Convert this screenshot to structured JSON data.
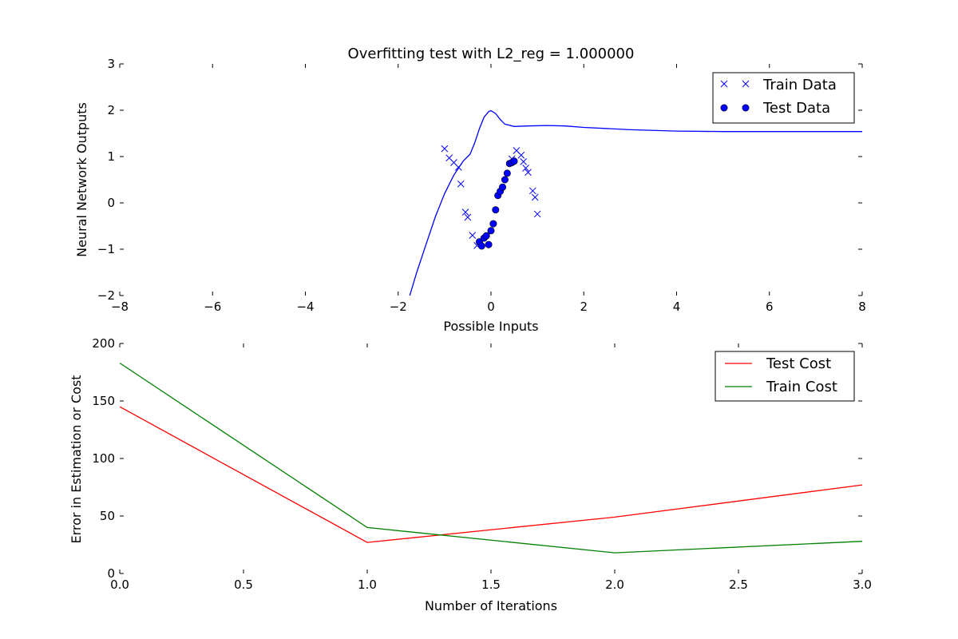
{
  "chart_data": [
    {
      "type": "line",
      "title": "Overfitting test with L2_reg = 1.000000",
      "xlabel": "Possible Inputs",
      "ylabel": "Neural Network Outputs",
      "xlim": [
        -8,
        8
      ],
      "ylim": [
        -2,
        3
      ],
      "xticks": [
        -8,
        -6,
        -4,
        -2,
        0,
        2,
        4,
        6,
        8
      ],
      "yticks": [
        -2,
        -1,
        0,
        1,
        2,
        3
      ],
      "xtick_labels": [
        "−8",
        "−6",
        "−4",
        "−2",
        "0",
        "2",
        "4",
        "6",
        "8"
      ],
      "ytick_labels": [
        "−2",
        "−1",
        "0",
        "1",
        "2",
        "3"
      ],
      "grid": false,
      "legend_placement": "top-right",
      "legend": [
        "Train Data",
        "Test Data"
      ],
      "model_curve": {
        "color": "#0000ff",
        "x": [
          -1.75,
          -1.6,
          -1.4,
          -1.2,
          -1.0,
          -0.8,
          -0.6,
          -0.45,
          -0.35,
          -0.25,
          -0.15,
          -0.05,
          0.0,
          0.1,
          0.2,
          0.3,
          0.5,
          0.8,
          1.2,
          1.6,
          2.0,
          3.0,
          4.0,
          5.0,
          6.0,
          7.0,
          8.0
        ],
        "y": [
          -2.0,
          -1.5,
          -0.9,
          -0.3,
          0.2,
          0.6,
          0.9,
          1.05,
          1.3,
          1.6,
          1.85,
          1.97,
          1.99,
          1.93,
          1.8,
          1.7,
          1.65,
          1.66,
          1.67,
          1.66,
          1.63,
          1.58,
          1.55,
          1.54,
          1.54,
          1.54,
          1.54
        ]
      },
      "series": [
        {
          "name": "Train Data",
          "marker": "x",
          "color": "#0000ff",
          "x": [
            -1.0,
            -0.9,
            -0.8,
            -0.7,
            -0.65,
            -0.55,
            -0.5,
            -0.4,
            -0.3,
            0.45,
            0.55,
            0.65,
            0.7,
            0.75,
            0.8,
            0.9,
            0.95,
            1.0
          ],
          "y": [
            1.17,
            0.97,
            0.87,
            0.77,
            0.41,
            -0.2,
            -0.31,
            -0.7,
            -0.92,
            0.95,
            1.13,
            1.03,
            0.89,
            0.75,
            0.66,
            0.26,
            0.12,
            -0.24
          ]
        },
        {
          "name": "Test Data",
          "marker": "o",
          "color": "#0000ff",
          "x": [
            -0.25,
            -0.2,
            -0.15,
            -0.1,
            -0.05,
            0.0,
            0.05,
            0.1,
            0.15,
            0.2,
            0.25,
            0.3,
            0.35,
            0.4,
            0.45,
            0.5
          ],
          "y": [
            -0.84,
            -0.93,
            -0.76,
            -0.71,
            -0.9,
            -0.6,
            -0.45,
            -0.15,
            0.16,
            0.25,
            0.34,
            0.5,
            0.64,
            0.85,
            0.87,
            0.9
          ]
        }
      ]
    },
    {
      "type": "line",
      "title": "",
      "xlabel": "Number of Iterations",
      "ylabel": "Error in Estimation or Cost",
      "xlim": [
        0.0,
        3.0
      ],
      "ylim": [
        0,
        200
      ],
      "xticks": [
        0.0,
        0.5,
        1.0,
        1.5,
        2.0,
        2.5,
        3.0
      ],
      "yticks": [
        0,
        50,
        100,
        150,
        200
      ],
      "xtick_labels": [
        "0.0",
        "0.5",
        "1.0",
        "1.5",
        "2.0",
        "2.5",
        "3.0"
      ],
      "ytick_labels": [
        "0",
        "50",
        "100",
        "150",
        "200"
      ],
      "grid": false,
      "legend_placement": "top-right",
      "legend": [
        "Test Cost",
        "Train Cost"
      ],
      "x": [
        0,
        1,
        2,
        3
      ],
      "series": [
        {
          "name": "Test Cost",
          "color": "#ff0000",
          "values": [
            145,
            27,
            49,
            77
          ]
        },
        {
          "name": "Train Cost",
          "color": "#008000",
          "values": [
            183,
            40,
            18,
            28
          ]
        }
      ]
    }
  ]
}
